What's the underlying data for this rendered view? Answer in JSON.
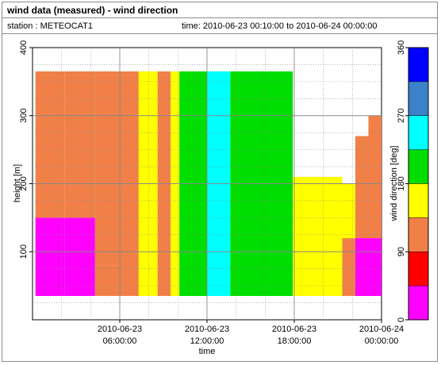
{
  "header": {
    "title": "wind data (measured) - wind direction",
    "station": "station : METEOCAT1",
    "time_range": "time: 2010-06-23 00:10:00 to 2010-06-24 00:00:00"
  },
  "chart_data": {
    "type": "heatmap",
    "xlabel": "time",
    "ylabel": "height [m]",
    "x_ticks": [
      {
        "hours": 6,
        "line1": "2010-06-23",
        "line2": "06:00:00"
      },
      {
        "hours": 12,
        "line1": "2010-06-23",
        "line2": "12:00:00"
      },
      {
        "hours": 18,
        "line1": "2010-06-23",
        "line2": "18:00:00"
      },
      {
        "hours": 24,
        "line1": "2010-06-24",
        "line2": "00:00:00"
      }
    ],
    "xlim_hours": [
      0,
      24
    ],
    "ylim": [
      0,
      400
    ],
    "y_ticks": [
      100,
      200,
      300,
      400
    ],
    "colorbar": {
      "label": "wind direction [deg]",
      "range": [
        0,
        360
      ],
      "ticks": [
        0,
        90,
        180,
        270,
        360
      ],
      "colors": [
        "#ff00ff",
        "#ff0000",
        "#f08048",
        "#ffff00",
        "#00dd00",
        "#00ffff",
        "#3c82c8",
        "#0000ff"
      ]
    },
    "height_range_m": [
      35,
      365
    ],
    "segments": [
      {
        "hours": [
          0.2,
          2.2
        ],
        "low": {
          "top": 150,
          "dir": 15
        },
        "high": {
          "top": 365,
          "dir": 112
        }
      },
      {
        "hours": [
          2.2,
          4.3
        ],
        "low": {
          "top": 150,
          "dir": 15
        },
        "high": {
          "top": 365,
          "dir": 112
        }
      },
      {
        "hours": [
          4.3,
          6.0
        ],
        "low": {
          "top": 80,
          "dir": 112
        },
        "high": {
          "top": 365,
          "dir": 112
        }
      },
      {
        "hours": [
          6.0,
          7.3
        ],
        "low": {
          "top": 365,
          "dir": 112
        },
        "high": {
          "top": 365,
          "dir": 112
        }
      },
      {
        "hours": [
          7.3,
          8.6
        ],
        "low": {
          "top": 365,
          "dir": 157
        },
        "high": {
          "top": 365,
          "dir": 157
        }
      },
      {
        "hours": [
          8.6,
          9.5
        ],
        "low": {
          "top": 365,
          "dir": 112
        },
        "high": {
          "top": 365,
          "dir": 112
        }
      },
      {
        "hours": [
          9.5,
          10.1
        ],
        "low": {
          "top": 365,
          "dir": 157
        },
        "high": {
          "top": 365,
          "dir": 157
        }
      },
      {
        "hours": [
          10.1,
          12.0
        ],
        "low": {
          "top": 365,
          "dir": 202
        },
        "high": {
          "top": 365,
          "dir": 202
        }
      },
      {
        "hours": [
          12.0,
          13.6
        ],
        "low": {
          "top": 365,
          "dir": 247
        },
        "high": {
          "top": 365,
          "dir": 247
        }
      },
      {
        "hours": [
          13.6,
          17.9
        ],
        "low": {
          "top": 365,
          "dir": 202
        },
        "high": {
          "top": 365,
          "dir": 202
        }
      },
      {
        "hours": [
          17.9,
          21.3
        ],
        "low": {
          "top": 200,
          "dir": 157
        },
        "high": {
          "top": 210,
          "dir": 157
        }
      },
      {
        "hours": [
          21.3,
          22.2
        ],
        "low": {
          "top": 120,
          "dir": 112
        },
        "high": {
          "top": 200,
          "dir": 157
        }
      },
      {
        "hours": [
          22.2,
          23.1
        ],
        "low": {
          "top": 120,
          "dir": 15
        },
        "high": {
          "top": 270,
          "dir": 112
        }
      },
      {
        "hours": [
          23.1,
          24.0
        ],
        "low": {
          "top": 120,
          "dir": 15
        },
        "high": {
          "top": 300,
          "dir": 112
        }
      }
    ]
  }
}
